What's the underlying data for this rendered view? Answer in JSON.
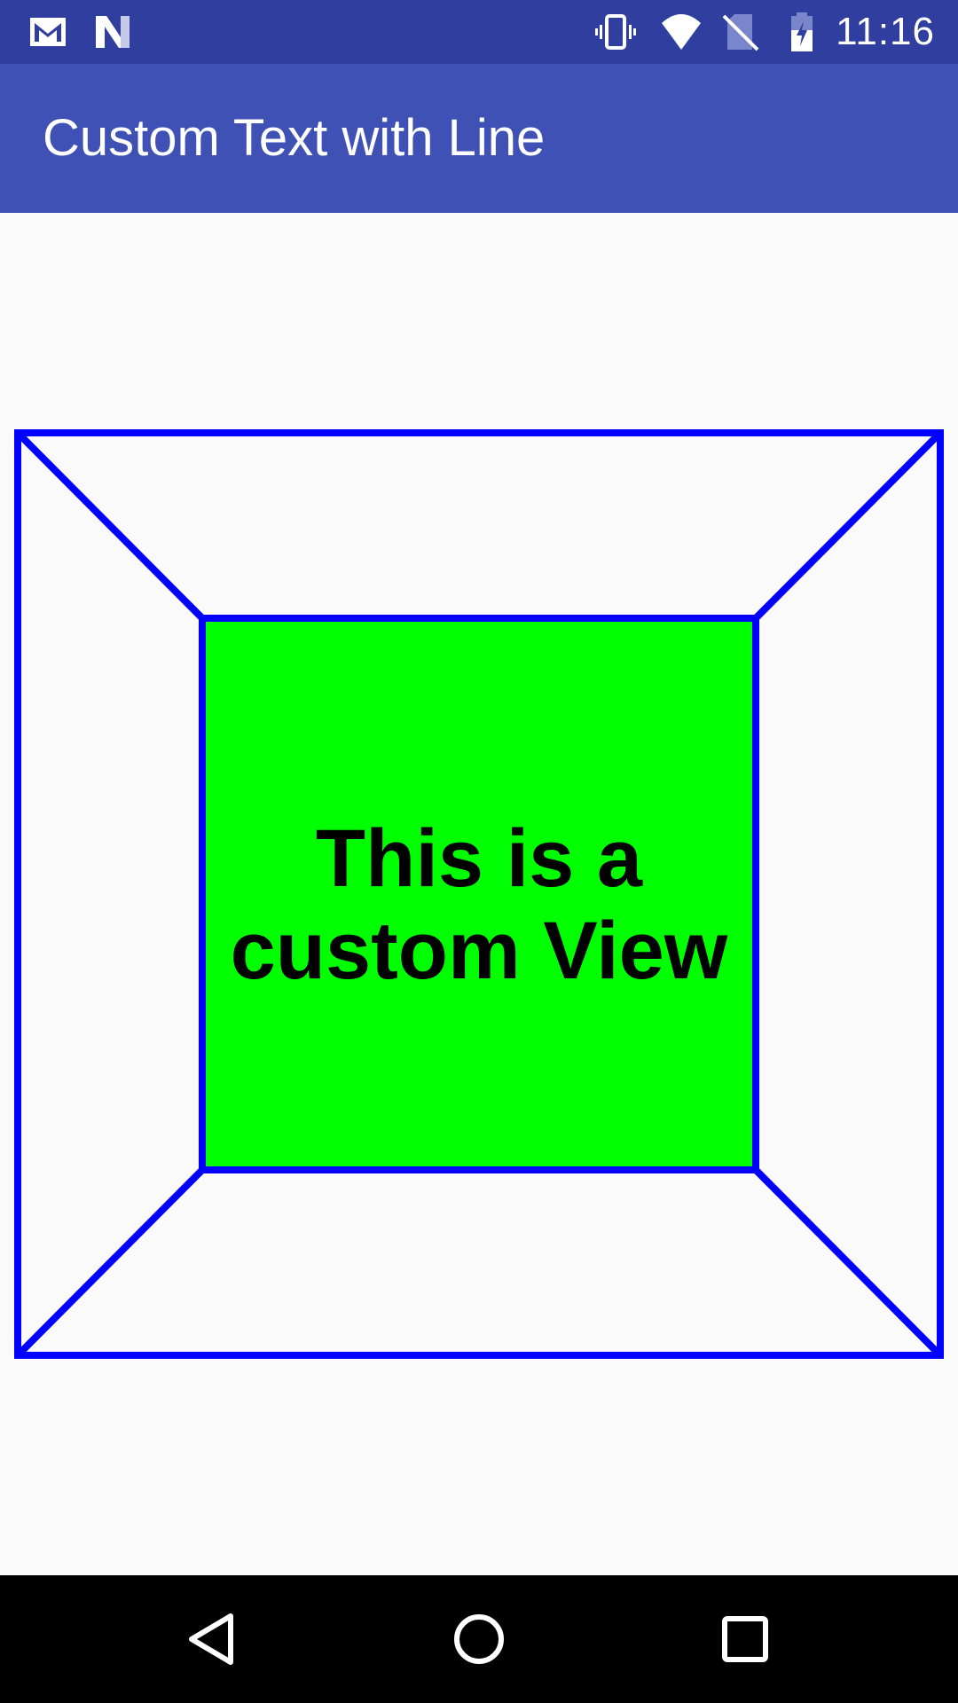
{
  "status_bar": {
    "time": "11:16",
    "icons": [
      "gmail-icon",
      "n-app-icon",
      "vibrate-icon",
      "wifi-icon",
      "no-sim-icon",
      "battery-charging-icon"
    ]
  },
  "app_bar": {
    "title": "Custom Text with Line"
  },
  "custom_view": {
    "line1": "This is a",
    "line2": "custom View",
    "fill_color": "#00ff00",
    "stroke_color": "#0000ff"
  },
  "nav_bar": {
    "buttons": [
      "back-icon",
      "home-icon",
      "recents-icon"
    ]
  },
  "colors": {
    "status_bar": "#303f9f",
    "app_bar": "#3f51b5",
    "background": "#fafafa"
  }
}
